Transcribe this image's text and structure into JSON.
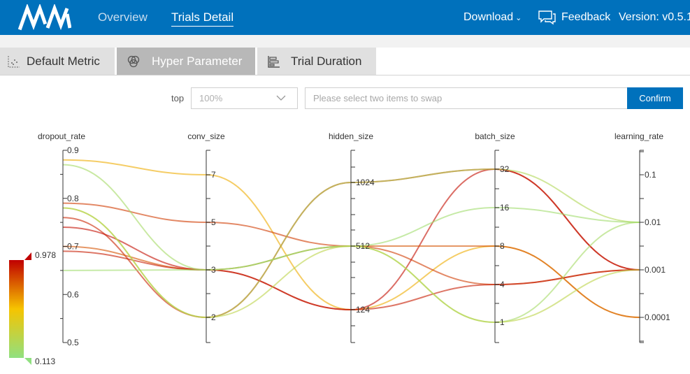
{
  "header": {
    "nav": [
      "Overview",
      "Trials Detail"
    ],
    "download": "Download",
    "feedback": "Feedback",
    "version": "Version: v0.5.1"
  },
  "tabs": [
    "Default Metric",
    "Hyper Parameter",
    "Trial Duration"
  ],
  "controls": {
    "top_label": "top",
    "top_value": "100%",
    "swap_placeholder": "Please select two items to swap",
    "confirm": "Confirm"
  },
  "colors": {
    "header": "#0071bc",
    "high": "#c00000",
    "mid": "#f6c400",
    "low": "#90e080"
  },
  "chart_data": {
    "type": "parallel-coordinates",
    "axes": [
      {
        "name": "dropout_rate",
        "ticks": [
          "0.9",
          "0.8",
          "0.7",
          "0.6",
          "0.5"
        ],
        "range": [
          0.5,
          0.9
        ]
      },
      {
        "name": "conv_size",
        "ticks": [
          "7",
          "5",
          "3",
          "2"
        ]
      },
      {
        "name": "hidden_size",
        "ticks": [
          "1024",
          "512",
          "124"
        ]
      },
      {
        "name": "batch_size",
        "ticks": [
          "32",
          "16",
          "8",
          "4",
          "1"
        ]
      },
      {
        "name": "learning_rate",
        "ticks": [
          "0.1",
          "0.01",
          "0.001",
          "0.0001"
        ]
      }
    ],
    "visual_map": {
      "max_label": "0.978",
      "min_label": "0.113",
      "min": 0.113,
      "max": 0.978
    },
    "trials": [
      {
        "dropout_rate": 0.88,
        "conv_size": "7",
        "hidden_size": "124",
        "batch_size": "8",
        "learning_rate": "0.0001",
        "metric": 0.6
      },
      {
        "dropout_rate": 0.79,
        "conv_size": "5",
        "hidden_size": "512",
        "batch_size": "4",
        "learning_rate": "0.001",
        "metric": 0.85
      },
      {
        "dropout_rate": 0.76,
        "conv_size": "2",
        "hidden_size": "1024",
        "batch_size": "32",
        "learning_rate": "0.001",
        "metric": 0.9
      },
      {
        "dropout_rate": 0.74,
        "conv_size": "3",
        "hidden_size": "124",
        "batch_size": "32",
        "learning_rate": "0.001",
        "metric": 0.95
      },
      {
        "dropout_rate": 0.7,
        "conv_size": "3",
        "hidden_size": "512",
        "batch_size": "8",
        "learning_rate": "0.0001",
        "metric": 0.8
      },
      {
        "dropout_rate": 0.69,
        "conv_size": "3",
        "hidden_size": "124",
        "batch_size": "4",
        "learning_rate": "0.001",
        "metric": 0.92
      },
      {
        "dropout_rate": 0.87,
        "conv_size": "3",
        "hidden_size": "512",
        "batch_size": "1",
        "learning_rate": "0.01",
        "metric": 0.2
      },
      {
        "dropout_rate": 0.78,
        "conv_size": "2",
        "hidden_size": "1024",
        "batch_size": "32",
        "learning_rate": "0.01",
        "metric": 0.25
      },
      {
        "dropout_rate": 0.65,
        "conv_size": "3",
        "hidden_size": "512",
        "batch_size": "16",
        "learning_rate": "0.01",
        "metric": 0.18
      },
      {
        "dropout_rate": 0.78,
        "conv_size": "2",
        "hidden_size": "512",
        "batch_size": "1",
        "learning_rate": "0.001",
        "metric": 0.3
      }
    ]
  }
}
